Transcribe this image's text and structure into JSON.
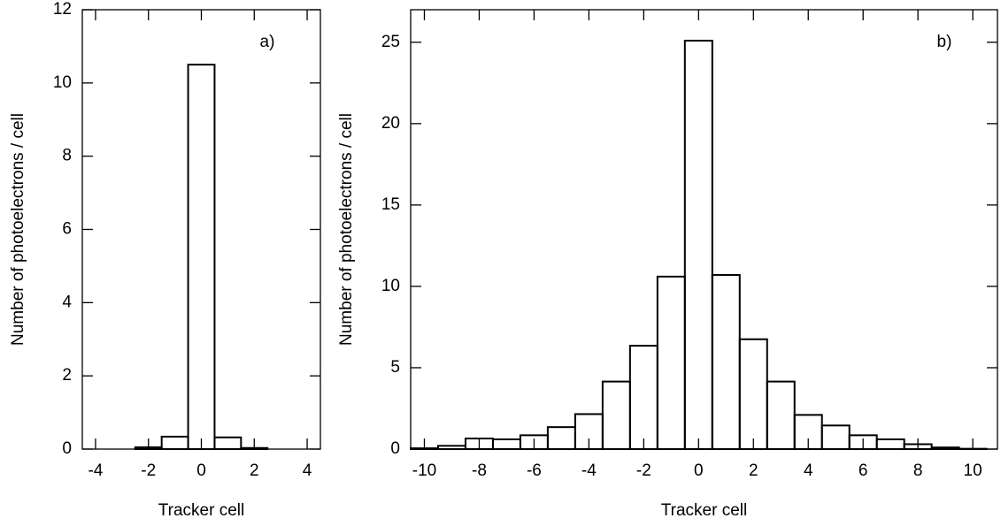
{
  "chart_data": [
    {
      "type": "histogram",
      "annotation": "a)",
      "xlabel": "Tracker cell",
      "ylabel": "Number of photoelectrons / cell",
      "bins": [
        -4.5,
        -3.5,
        -2.5,
        -1.5,
        -0.5,
        0.5,
        1.5,
        2.5,
        3.5,
        4.5
      ],
      "values": [
        0,
        0,
        0.05,
        0.34,
        10.5,
        0.32,
        0.03,
        0,
        0
      ],
      "xlim": [
        -4.5,
        4.5
      ],
      "xticks": [
        -4,
        -2,
        0,
        2,
        4
      ],
      "ylim": [
        0,
        12
      ],
      "yticks": [
        0,
        2,
        4,
        6,
        8,
        10,
        12
      ],
      "color": "#000000"
    },
    {
      "type": "histogram",
      "annotation": "b)",
      "xlabel": "Tracker cell",
      "ylabel": "Number of photoelectrons / cell",
      "bins": [
        -10.5,
        -9.5,
        -8.5,
        -7.5,
        -6.5,
        -5.5,
        -4.5,
        -3.5,
        -2.5,
        -1.5,
        -0.5,
        0.5,
        1.5,
        2.5,
        3.5,
        4.5,
        5.5,
        6.5,
        7.5,
        8.5,
        9.5,
        10.5
      ],
      "values": [
        0.05,
        0.2,
        0.65,
        0.6,
        0.85,
        1.35,
        2.15,
        4.15,
        6.35,
        10.6,
        25.1,
        10.7,
        6.75,
        4.15,
        2.1,
        1.45,
        0.85,
        0.6,
        0.3,
        0.1,
        0.02
      ],
      "xlim": [
        -10.5,
        10.9
      ],
      "xticks": [
        -10,
        -8,
        -6,
        -4,
        -2,
        0,
        2,
        4,
        6,
        8,
        10
      ],
      "ylim": [
        0,
        27
      ],
      "yticks": [
        0,
        5,
        10,
        15,
        20,
        25
      ],
      "color": "#000000"
    }
  ]
}
